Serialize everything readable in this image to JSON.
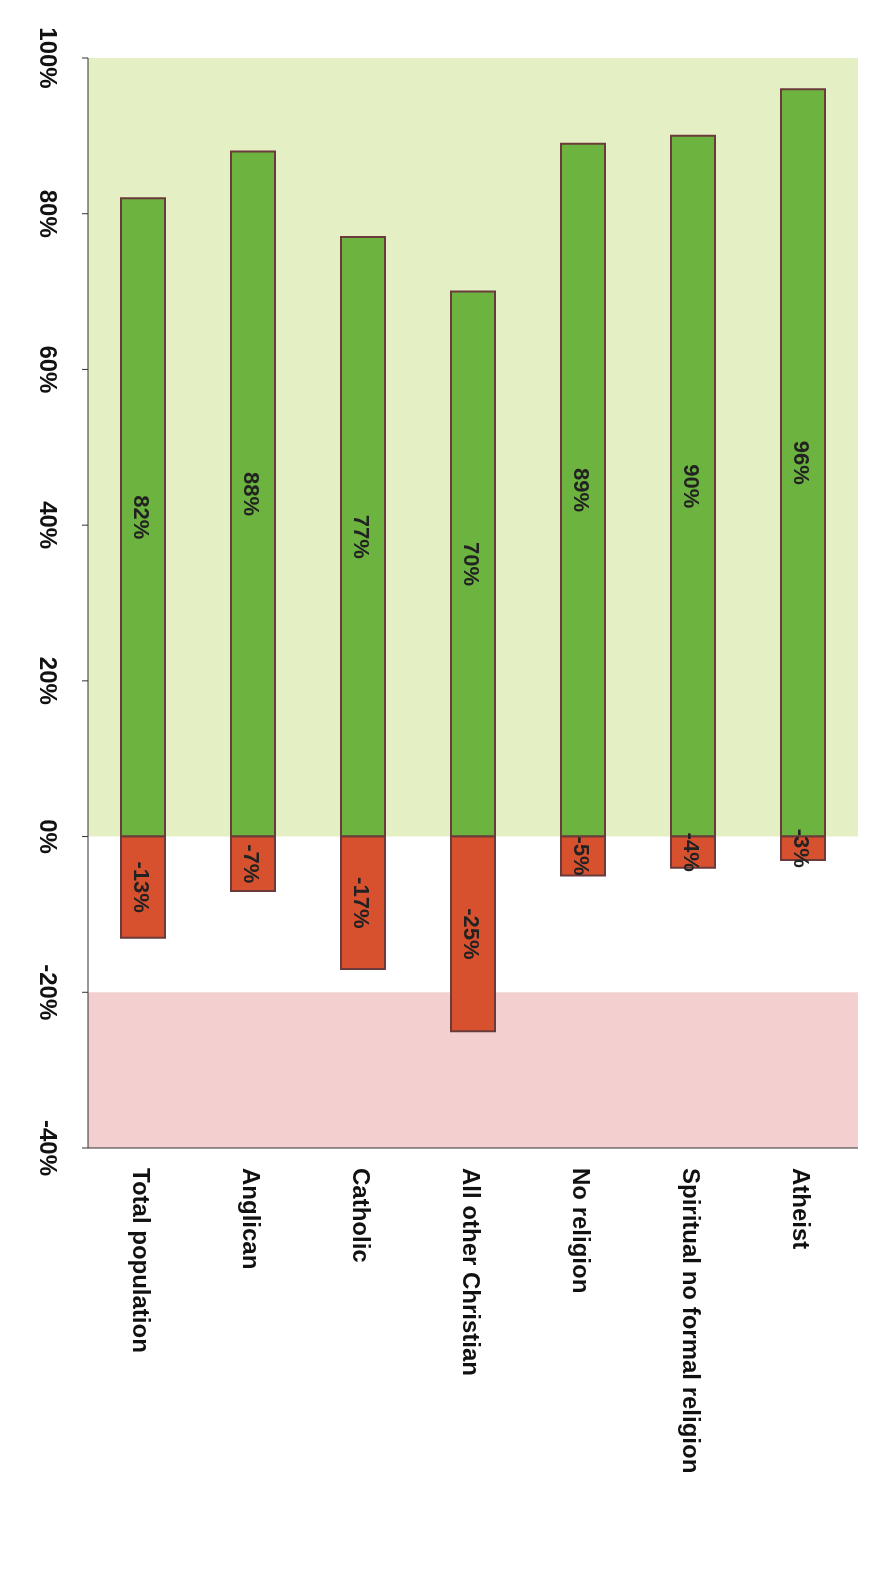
{
  "chart_data": {
    "type": "bar",
    "stacked": true,
    "categories": [
      "Total population",
      "Anglican",
      "Catholic",
      "All other Christian",
      "No religion",
      "Spiritual no formal religion",
      "Atheist"
    ],
    "series": [
      {
        "color": "#6cb33f",
        "values": [
          82,
          88,
          77,
          70,
          89,
          90,
          96
        ],
        "value_labels": [
          "82%",
          "88%",
          "77%",
          "70%",
          "89%",
          "90%",
          "96%"
        ]
      },
      {
        "color": "#d8512f",
        "values": [
          -13,
          -7,
          -17,
          -25,
          -5,
          -4,
          -3
        ],
        "value_labels": [
          "-13%",
          "-7%",
          "-17%",
          "-25%",
          "-5%",
          "-4%",
          "-3%"
        ]
      }
    ],
    "ylim": [
      -40,
      100
    ],
    "yticks": [
      {
        "value": -40,
        "label": "-40%"
      },
      {
        "value": -20,
        "label": "-20%"
      },
      {
        "value": 0,
        "label": "0%"
      },
      {
        "value": 20,
        "label": "20%"
      },
      {
        "value": 40,
        "label": "40%"
      },
      {
        "value": 60,
        "label": "60%"
      },
      {
        "value": 80,
        "label": "80%"
      },
      {
        "value": 100,
        "label": "100%"
      }
    ],
    "bands": [
      {
        "axis": "y",
        "from": 0,
        "to": 100,
        "color": "#e4f0c4"
      },
      {
        "axis": "y",
        "from": -40,
        "to": -20,
        "color": "#f3cfcf"
      }
    ]
  }
}
